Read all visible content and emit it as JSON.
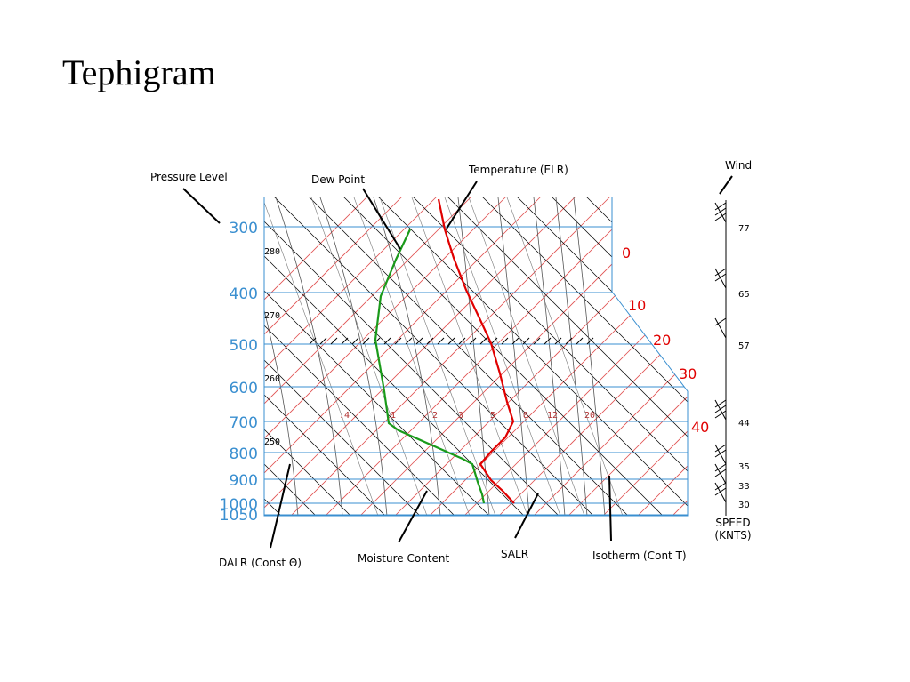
{
  "title": "Tephigram",
  "callouts": {
    "pressure_level": "Pressure Level",
    "dew_point": "Dew Point",
    "temperature": "Temperature (ELR)",
    "wind": "Wind",
    "dalr": "DALR (Const Θ)",
    "moisture_content": "Moisture Content",
    "salr": "SALR",
    "isotherm": "Isotherm (Cont T)"
  },
  "pressure_levels": [
    "300",
    "400",
    "500",
    "600",
    "700",
    "800",
    "900",
    "1000",
    "1050"
  ],
  "isotherm_labels": [
    "0",
    "10",
    "20",
    "30",
    "40"
  ],
  "theta_labels": [
    "280",
    "270",
    "260",
    "250"
  ],
  "mixing_ratio_labels": [
    ".4",
    "1",
    "2",
    "3",
    "5",
    "8",
    "12",
    "20"
  ],
  "wind_speeds": [
    "77",
    "65",
    "57",
    "44",
    "35",
    "33",
    "30"
  ],
  "speed_header": [
    "SPEED",
    "(KNTS)"
  ],
  "colors": {
    "isobar": "#3a8fd0",
    "isotherm": "#e05050",
    "temperature": "#e00000",
    "dew_point": "#1a9a1a",
    "adiabat": "#000000"
  }
}
